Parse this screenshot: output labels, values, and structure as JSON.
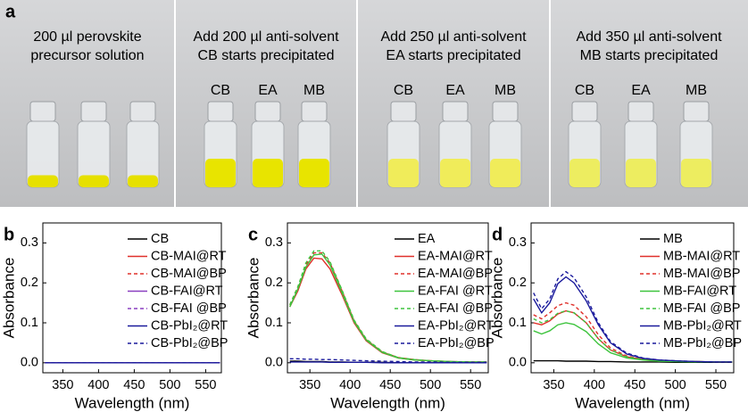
{
  "photo": {
    "panel_label": "a",
    "sections": [
      {
        "lines": [
          "200 µl perovskite",
          "precursor solution"
        ]
      },
      {
        "lines": [
          "Add 200 µl anti-solvent",
          "CB starts precipitated"
        ],
        "vial_labels": [
          "CB",
          "EA",
          "MB"
        ]
      },
      {
        "lines": [
          "Add 250 µl anti-solvent",
          "EA starts precipitated"
        ],
        "vial_labels": [
          "CB",
          "EA",
          "MB"
        ]
      },
      {
        "lines": [
          "Add 350 µl anti-solvent",
          "MB starts precipitated"
        ],
        "vial_labels": [
          "CB",
          "EA",
          "MB"
        ]
      }
    ]
  },
  "chart_data": [
    {
      "type": "line",
      "panel_label": "b",
      "x_label": "Wavelength (nm)",
      "y_label": "Absorbance",
      "x": [
        325,
        335,
        345,
        355,
        365,
        375,
        390,
        405,
        420,
        440,
        460,
        480,
        500,
        525,
        550,
        570
      ],
      "xlim": [
        322,
        572
      ],
      "xticks": [
        350,
        400,
        450,
        500,
        550
      ],
      "ylim": [
        -0.025,
        0.35
      ],
      "yticks": [
        {
          "value": 0,
          "label": "0.0"
        },
        0.1,
        0.2,
        0.3
      ],
      "series": [
        {
          "name": "CB",
          "color": "#000000",
          "dashed": false,
          "values": [
            0,
            0,
            0,
            0,
            0,
            0,
            0,
            0,
            0,
            0,
            0,
            0,
            0,
            0,
            0,
            0
          ]
        },
        {
          "name": "CB-MAI@RT",
          "color": "#e0302a",
          "dashed": false,
          "values": [
            0,
            0,
            0,
            0,
            0,
            0,
            0,
            0,
            0,
            0,
            0,
            0,
            0,
            0,
            0,
            0
          ]
        },
        {
          "name": "CB-MAI@BP",
          "color": "#e0302a",
          "dashed": true,
          "values": [
            0,
            0,
            0,
            0,
            0,
            0,
            0,
            0,
            0,
            0,
            0,
            0,
            0,
            0,
            0,
            0
          ]
        },
        {
          "name": "CB-FAI@RT",
          "color": "#8a3fc0",
          "dashed": false,
          "values": [
            0,
            0,
            0,
            0,
            0,
            0,
            0,
            0,
            0,
            0,
            0,
            0,
            0,
            0,
            0,
            0
          ]
        },
        {
          "name": "CB-FAI @BP",
          "color": "#8a3fc0",
          "dashed": true,
          "values": [
            0,
            0,
            0,
            0,
            0,
            0,
            0,
            0,
            0,
            0,
            0,
            0,
            0,
            0,
            0,
            0
          ]
        },
        {
          "name": "CB-PbI₂@RT",
          "color": "#1a1a9c",
          "dashed": false,
          "values": [
            0,
            0,
            0,
            0,
            0,
            0,
            0,
            0,
            0,
            0,
            0,
            0,
            0,
            0,
            0,
            0
          ]
        },
        {
          "name": "CB-PbI₂@BP",
          "color": "#1a1a9c",
          "dashed": true,
          "values": [
            0,
            0,
            0,
            0,
            0,
            0,
            0,
            0,
            0,
            0,
            0,
            0,
            0,
            0,
            0,
            0
          ]
        }
      ]
    },
    {
      "type": "line",
      "panel_label": "c",
      "x_label": "Wavelength (nm)",
      "y_label": "Absorbance",
      "x": [
        325,
        335,
        345,
        355,
        365,
        375,
        390,
        405,
        420,
        440,
        460,
        480,
        500,
        525,
        550,
        570
      ],
      "xlim": [
        322,
        572
      ],
      "xticks": [
        350,
        400,
        450,
        500,
        550
      ],
      "ylim": [
        -0.025,
        0.35
      ],
      "yticks": [
        {
          "value": 0,
          "label": "0.0"
        },
        0.1,
        0.2,
        0.3
      ],
      "series": [
        {
          "name": "EA",
          "color": "#000000",
          "dashed": false,
          "values": [
            0.004,
            0.004,
            0.003,
            0.003,
            0.003,
            0.002,
            0.002,
            0.001,
            0.001,
            0.001,
            0,
            0,
            0,
            0,
            0,
            0
          ]
        },
        {
          "name": "EA-MAI@RT",
          "color": "#e0302a",
          "dashed": false,
          "values": [
            0.14,
            0.18,
            0.235,
            0.262,
            0.26,
            0.235,
            0.17,
            0.1,
            0.055,
            0.025,
            0.012,
            0.007,
            0.005,
            0.003,
            0.002,
            0.002
          ]
        },
        {
          "name": "EA-MAI@BP",
          "color": "#e0302a",
          "dashed": true,
          "values": [
            0.145,
            0.19,
            0.245,
            0.275,
            0.275,
            0.25,
            0.18,
            0.105,
            0.058,
            0.027,
            0.013,
            0.008,
            0.005,
            0.003,
            0.002,
            0.002
          ]
        },
        {
          "name": "EA-FAI @RT",
          "color": "#3ec43e",
          "dashed": false,
          "values": [
            0.14,
            0.185,
            0.24,
            0.27,
            0.272,
            0.245,
            0.175,
            0.103,
            0.057,
            0.026,
            0.012,
            0.007,
            0.005,
            0.003,
            0.002,
            0.002
          ]
        },
        {
          "name": "EA-FAI @BP",
          "color": "#3ec43e",
          "dashed": true,
          "values": [
            0.145,
            0.19,
            0.25,
            0.28,
            0.28,
            0.253,
            0.182,
            0.107,
            0.06,
            0.028,
            0.013,
            0.008,
            0.005,
            0.003,
            0.002,
            0.002
          ]
        },
        {
          "name": "EA-PbI₂@RT",
          "color": "#1a1a9c",
          "dashed": false,
          "values": [
            0.002,
            0.002,
            0.002,
            0.002,
            0.002,
            0.001,
            0.001,
            0.001,
            0.001,
            0,
            0,
            0,
            0,
            0,
            0,
            0
          ]
        },
        {
          "name": "EA-PbI₂@BP",
          "color": "#1a1a9c",
          "dashed": true,
          "values": [
            0.01,
            0.01,
            0.009,
            0.009,
            0.008,
            0.008,
            0.007,
            0.006,
            0.005,
            0.004,
            0.003,
            0.002,
            0.002,
            0.001,
            0.001,
            0.001
          ]
        }
      ]
    },
    {
      "type": "line",
      "panel_label": "d",
      "x_label": "Wavelength (nm)",
      "y_label": "Absorbance",
      "x": [
        325,
        335,
        345,
        355,
        365,
        375,
        390,
        405,
        420,
        440,
        460,
        480,
        500,
        525,
        550,
        570
      ],
      "xlim": [
        322,
        572
      ],
      "xticks": [
        350,
        400,
        450,
        500,
        550
      ],
      "ylim": [
        -0.025,
        0.35
      ],
      "yticks": [
        {
          "value": 0,
          "label": "0.0"
        },
        0.1,
        0.2,
        0.3
      ],
      "series": [
        {
          "name": "MB",
          "color": "#000000",
          "dashed": false,
          "values": [
            0.005,
            0.005,
            0.005,
            0.005,
            0.004,
            0.004,
            0.004,
            0.003,
            0.003,
            0.002,
            0.002,
            0.002,
            0.001,
            0.001,
            0.001,
            0.001
          ]
        },
        {
          "name": "MB-MAI@RT",
          "color": "#e0302a",
          "dashed": false,
          "values": [
            0.1,
            0.095,
            0.105,
            0.122,
            0.13,
            0.125,
            0.1,
            0.06,
            0.032,
            0.015,
            0.008,
            0.005,
            0.004,
            0.003,
            0.002,
            0.002
          ]
        },
        {
          "name": "MB-MAI@BP",
          "color": "#e0302a",
          "dashed": true,
          "values": [
            0.12,
            0.11,
            0.125,
            0.143,
            0.15,
            0.144,
            0.115,
            0.07,
            0.037,
            0.017,
            0.009,
            0.006,
            0.004,
            0.003,
            0.002,
            0.002
          ]
        },
        {
          "name": "MB-FAI@RT",
          "color": "#3ec43e",
          "dashed": false,
          "values": [
            0.08,
            0.072,
            0.08,
            0.095,
            0.1,
            0.096,
            0.078,
            0.047,
            0.025,
            0.012,
            0.007,
            0.004,
            0.003,
            0.002,
            0.002,
            0.002
          ]
        },
        {
          "name": "MB-FAI @BP",
          "color": "#3ec43e",
          "dashed": true,
          "values": [
            0.11,
            0.1,
            0.108,
            0.124,
            0.13,
            0.125,
            0.1,
            0.06,
            0.032,
            0.015,
            0.008,
            0.005,
            0.004,
            0.003,
            0.002,
            0.002
          ]
        },
        {
          "name": "MB-PbI₂@RT",
          "color": "#1a1a9c",
          "dashed": false,
          "values": [
            0.16,
            0.125,
            0.15,
            0.198,
            0.215,
            0.2,
            0.155,
            0.095,
            0.05,
            0.022,
            0.011,
            0.007,
            0.005,
            0.003,
            0.002,
            0.002
          ]
        },
        {
          "name": "MB-PbI₂@BP",
          "color": "#1a1a9c",
          "dashed": true,
          "values": [
            0.175,
            0.135,
            0.16,
            0.21,
            0.228,
            0.213,
            0.165,
            0.1,
            0.053,
            0.024,
            0.012,
            0.007,
            0.005,
            0.003,
            0.002,
            0.002
          ]
        }
      ]
    }
  ]
}
